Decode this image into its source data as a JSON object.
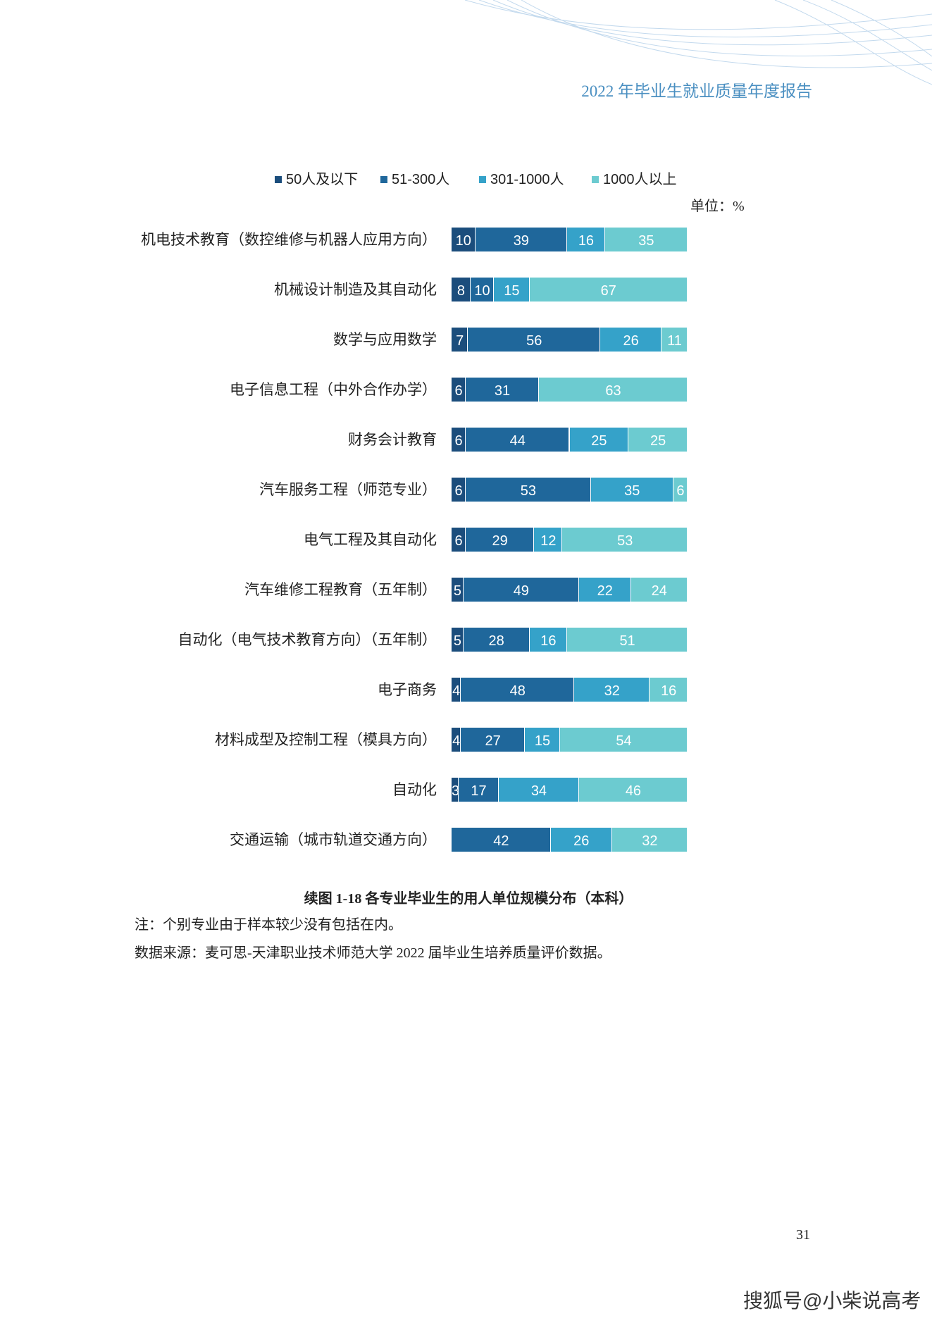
{
  "header": "2022 年毕业生就业质量年度报告",
  "chart_data": {
    "type": "stacked-bar",
    "orientation": "horizontal",
    "unit": "单位：%",
    "title": "续图 1-18 各专业毕业生的用人单位规模分布（本科）",
    "categories": [
      "机电技术教育（数控维修与机器人应用方向）",
      "机械设计制造及其自动化",
      "数学与应用数学",
      "电子信息工程（中外合作办学）",
      "财务会计教育",
      "汽车服务工程（师范专业）",
      "电气工程及其自动化",
      "汽车维修工程教育（五年制）",
      "自动化（电气技术教育方向）（五年制）",
      "电子商务",
      "材料成型及控制工程（模具方向）",
      "自动化",
      "交通运输（城市轨道交通方向）"
    ],
    "series": [
      {
        "name": "50人及以下",
        "color": "#1b4d7c",
        "values": [
          10,
          8,
          7,
          6,
          6,
          6,
          6,
          5,
          5,
          4,
          4,
          3,
          null
        ]
      },
      {
        "name": "51-300人",
        "color": "#1f679b",
        "values": [
          39,
          10,
          56,
          31,
          44,
          53,
          29,
          49,
          28,
          48,
          27,
          17,
          42
        ]
      },
      {
        "name": "301-1000人",
        "color": "#35a2c9",
        "values": [
          16,
          15,
          26,
          null,
          25,
          35,
          12,
          22,
          16,
          32,
          15,
          34,
          26
        ]
      },
      {
        "name": "1000人以上",
        "color": "#6ccbd0",
        "values": [
          35,
          67,
          11,
          63,
          25,
          6,
          53,
          24,
          51,
          16,
          54,
          46,
          32
        ]
      }
    ]
  },
  "note": "注：个别专业由于样本较少没有包括在内。",
  "source": "数据来源：麦可思-天津职业技术师范大学 2022 届毕业生培养质量评价数据。",
  "page_number": "31",
  "watermark": "搜狐号@小柴说高考"
}
